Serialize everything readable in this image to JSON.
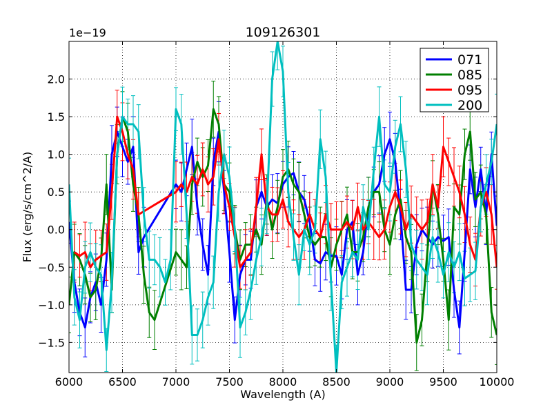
{
  "chart_data": {
    "type": "line",
    "title": "109126301",
    "xlabel": "Wavelength (A)",
    "ylabel": "Flux (erg/s/cm^2/A)",
    "offset_text": "1e−19",
    "xlim": [
      6000,
      10000
    ],
    "ylim": [
      -1.9,
      2.5
    ],
    "x_ticks": [
      6000,
      6500,
      7000,
      7500,
      8000,
      8500,
      9000,
      9500,
      10000
    ],
    "x_tick_labels": [
      "6000",
      "6500",
      "7000",
      "7500",
      "8000",
      "8500",
      "9000",
      "9500",
      "10000"
    ],
    "y_ticks": [
      -1.5,
      -1.0,
      -0.5,
      0.0,
      0.5,
      1.0,
      1.5,
      2.0
    ],
    "y_tick_labels": [
      "−1.5",
      "−1.0",
      "−0.5",
      "0.0",
      "0.5",
      "1.0",
      "1.5",
      "2.0"
    ],
    "grid": true,
    "legend_position": "top-right",
    "series": [
      {
        "name": "071",
        "color": "#0000ff",
        "x": [
          6000,
          6050,
          6100,
          6150,
          6200,
          6250,
          6300,
          6350,
          6400,
          6450,
          6500,
          6550,
          6600,
          6650,
          6700,
          7000,
          7050,
          7100,
          7150,
          7200,
          7250,
          7300,
          7350,
          7400,
          7450,
          7500,
          7550,
          7600,
          7650,
          7700,
          7750,
          7800,
          7850,
          7900,
          7950,
          8000,
          8050,
          8100,
          8150,
          8200,
          8250,
          8300,
          8350,
          8400,
          8450,
          8500,
          8550,
          8600,
          8650,
          8700,
          8750,
          8800,
          8850,
          8900,
          8950,
          9000,
          9050,
          9100,
          9150,
          9200,
          9250,
          9300,
          9350,
          9400,
          9450,
          9500,
          9550,
          9600,
          9650,
          9700,
          9750,
          9800,
          9850,
          9900,
          9950,
          10000
        ],
        "y": [
          0.1,
          -0.7,
          -1.1,
          -1.3,
          -0.9,
          -0.7,
          -1.0,
          -0.4,
          1.0,
          1.3,
          1.1,
          0.9,
          1.1,
          -0.3,
          -0.1,
          0.6,
          0.5,
          0.8,
          1.1,
          0.3,
          -0.2,
          -0.6,
          0.9,
          1.3,
          0.5,
          -0.3,
          -1.2,
          -0.6,
          -0.4,
          -0.4,
          0.3,
          0.5,
          0.3,
          0.4,
          0.35,
          0.6,
          0.7,
          0.75,
          0.5,
          0.4,
          0.1,
          -0.4,
          -0.45,
          -0.3,
          -0.35,
          -0.35,
          -0.6,
          0.0,
          0.1,
          -0.6,
          -0.3,
          0.3,
          0.5,
          0.6,
          1.0,
          1.2,
          0.9,
          0.2,
          -0.8,
          -0.8,
          -0.2,
          0.0,
          -0.1,
          -0.2,
          -0.1,
          -0.15,
          -0.1,
          -0.8,
          -1.3,
          -0.3,
          0.8,
          0.3,
          0.8,
          0.2,
          1.0,
          0.05
        ]
      },
      {
        "name": "085",
        "color": "#007f00",
        "x": [
          6000,
          6050,
          6100,
          6150,
          6200,
          6250,
          6300,
          6350,
          6400,
          6450,
          6500,
          6550,
          6600,
          6650,
          6700,
          6750,
          6800,
          7000,
          7050,
          7100,
          7150,
          7200,
          7250,
          7300,
          7350,
          7400,
          7450,
          7500,
          7550,
          7600,
          7650,
          7700,
          7750,
          7800,
          7850,
          7900,
          7950,
          8000,
          8050,
          8100,
          8150,
          8200,
          8250,
          8300,
          8350,
          8400,
          8450,
          8500,
          8550,
          8600,
          8650,
          8700,
          8750,
          8800,
          8850,
          8900,
          8950,
          9000,
          9050,
          9100,
          9150,
          9200,
          9250,
          9300,
          9350,
          9400,
          9450,
          9500,
          9550,
          9600,
          9650,
          9700,
          9750,
          9800,
          9850,
          9900,
          9950,
          10000
        ],
        "y": [
          -1.0,
          -0.3,
          -0.4,
          -0.6,
          -0.9,
          -0.8,
          -0.4,
          0.6,
          -0.8,
          1.0,
          1.5,
          1.3,
          0.6,
          0.2,
          -0.6,
          -1.1,
          -1.2,
          -0.3,
          -0.4,
          -0.5,
          0.6,
          0.9,
          0.7,
          0.85,
          1.6,
          1.4,
          0.6,
          0.5,
          0.0,
          -0.4,
          -0.2,
          -0.2,
          0.0,
          -0.2,
          0.4,
          0.0,
          0.3,
          0.7,
          0.8,
          0.6,
          0.5,
          0.2,
          -0.1,
          -0.2,
          -0.1,
          -0.1,
          -0.5,
          -0.2,
          0.0,
          0.2,
          -0.3,
          -0.3,
          -0.1,
          0.3,
          0.5,
          0.5,
          0.0,
          -0.2,
          0.2,
          0.4,
          -0.1,
          -0.3,
          -1.5,
          -1.2,
          -0.3,
          0.6,
          0.2,
          -0.4,
          -1.2,
          0.3,
          0.2,
          1.0,
          1.3,
          0.4,
          0.5,
          0.2,
          -1.1,
          -1.4
        ]
      },
      {
        "name": "095",
        "color": "#ff0000",
        "x": [
          6050,
          6100,
          6150,
          6200,
          6250,
          6300,
          6350,
          6400,
          6450,
          6500,
          6550,
          6600,
          6650,
          7000,
          7050,
          7100,
          7150,
          7200,
          7250,
          7300,
          7350,
          7400,
          7450,
          7500,
          7550,
          7600,
          7650,
          7700,
          7750,
          7800,
          7850,
          7900,
          7950,
          8000,
          8050,
          8100,
          8150,
          8200,
          8250,
          8300,
          8350,
          8400,
          8450,
          8500,
          8550,
          8600,
          8650,
          8700,
          8750,
          8800,
          8850,
          8900,
          8950,
          9000,
          9050,
          9100,
          9150,
          9200,
          9250,
          9300,
          9350,
          9400,
          9450,
          9500,
          9550,
          9600,
          9650,
          9700,
          9750,
          9800,
          9850,
          9900,
          9950,
          10000
        ],
        "y": [
          -0.3,
          -0.35,
          -0.3,
          -0.5,
          -0.4,
          -0.35,
          -0.3,
          0.5,
          1.5,
          1.3,
          1.0,
          0.8,
          0.2,
          0.5,
          0.6,
          0.5,
          0.7,
          0.6,
          0.8,
          0.6,
          0.7,
          1.2,
          0.6,
          0.3,
          -0.1,
          -0.5,
          -0.4,
          -0.3,
          0.3,
          1.0,
          0.3,
          0.2,
          0.2,
          0.4,
          0.1,
          0.0,
          -0.1,
          0.0,
          0.2,
          0.0,
          -0.1,
          0.2,
          0.0,
          0.0,
          0.0,
          0.1,
          0.0,
          0.3,
          0.0,
          0.1,
          0.0,
          -0.1,
          0.0,
          0.3,
          0.5,
          0.3,
          0.0,
          0.2,
          0.1,
          0.0,
          0.1,
          0.6,
          0.3,
          1.1,
          0.9,
          0.7,
          0.5,
          0.2,
          -0.2,
          -0.4,
          0.3,
          0.5,
          0.2,
          -0.5
        ]
      },
      {
        "name": "200",
        "color": "#00bfbf",
        "x": [
          6000,
          6050,
          6100,
          6150,
          6200,
          6250,
          6300,
          6350,
          6400,
          6450,
          6500,
          6550,
          6600,
          6650,
          6700,
          6750,
          6800,
          6850,
          6900,
          6950,
          7000,
          7050,
          7100,
          7150,
          7200,
          7250,
          7300,
          7350,
          7400,
          7450,
          7500,
          7550,
          7600,
          7650,
          7700,
          7750,
          7800,
          7850,
          7900,
          7950,
          8000,
          8050,
          8100,
          8150,
          8200,
          8250,
          8300,
          8350,
          8400,
          8450,
          8500,
          8550,
          8600,
          8650,
          8700,
          8750,
          8800,
          8850,
          8900,
          8950,
          9000,
          9050,
          9100,
          9150,
          9200,
          9250,
          9300,
          9350,
          9400,
          9450,
          9500,
          9550,
          9600,
          9650,
          9700,
          9750,
          9800,
          9850,
          9900,
          9950,
          10000
        ],
        "y": [
          0.6,
          -0.9,
          -1.2,
          -0.5,
          -0.3,
          -0.5,
          -0.6,
          -1.6,
          -0.7,
          1.0,
          1.5,
          1.4,
          1.4,
          1.3,
          0.2,
          -0.4,
          -0.4,
          -0.5,
          -0.7,
          -0.4,
          1.6,
          1.4,
          0.2,
          -1.4,
          -1.4,
          -1.2,
          -0.9,
          -0.7,
          0.5,
          1.0,
          0.7,
          0.0,
          -1.3,
          -1.1,
          -0.8,
          -0.4,
          -0.1,
          0.3,
          2.0,
          2.5,
          2.1,
          0.5,
          -0.1,
          -0.6,
          0.0,
          -0.2,
          0.0,
          1.2,
          0.7,
          -0.7,
          -1.9,
          -0.7,
          -0.5,
          -0.3,
          -0.4,
          0.3,
          0.0,
          0.8,
          1.5,
          0.6,
          0.5,
          1.1,
          1.4,
          0.8,
          -0.2,
          -0.4,
          -0.5,
          -0.6,
          -0.1,
          -0.3,
          -0.6,
          -0.3,
          -0.5,
          -0.3,
          -0.65,
          -0.6,
          -0.55,
          0.3,
          0.6,
          0.9,
          1.4
        ]
      }
    ]
  }
}
